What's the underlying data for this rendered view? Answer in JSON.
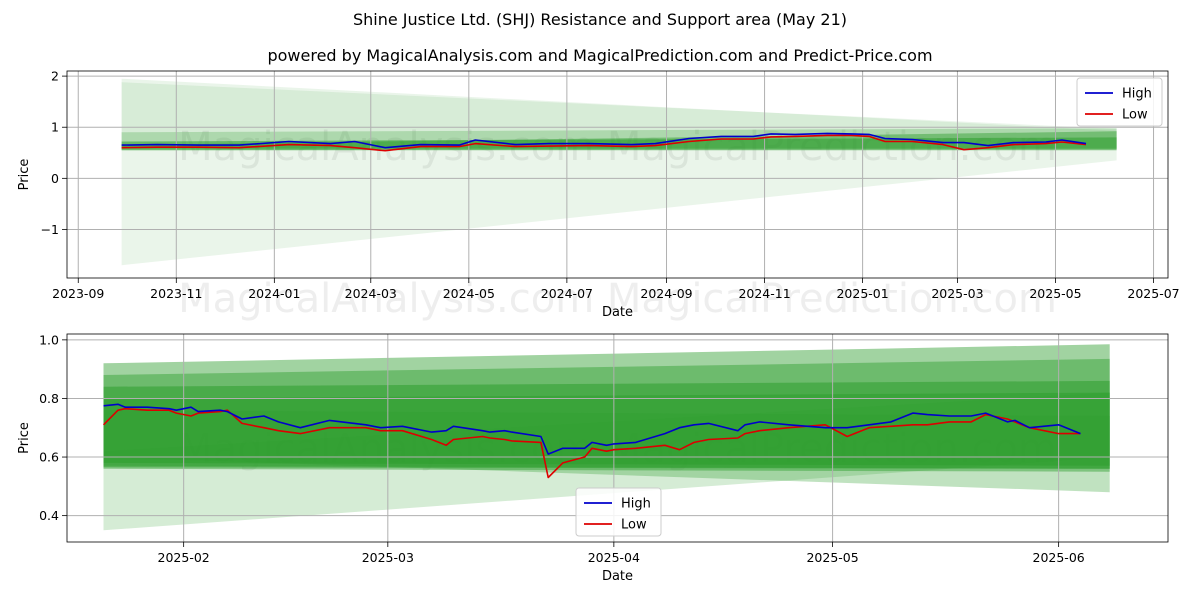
{
  "title": "Shine Justice Ltd. (SHJ) Resistance and Support area (May 21)",
  "subtitle": "powered by MagicalAnalysis.com and MagicalPrediction.com and Predict-Price.com",
  "watermark": "MagicalAnalysis.com     MagicalPrediction.com",
  "colors": {
    "high": "#0000cc",
    "low": "#dd0000",
    "band": "#2e9e2e"
  },
  "chart_data": [
    {
      "type": "line",
      "title": "",
      "xlabel": "Date",
      "ylabel": "Price",
      "x_tick_labels": [
        "2023-09",
        "2023-11",
        "2024-01",
        "2024-03",
        "2024-05",
        "2024-07",
        "2024-09",
        "2024-11",
        "2025-01",
        "2025-03",
        "2025-05",
        "2025-07"
      ],
      "y_tick_labels": [
        "−1",
        "0",
        "1",
        "2"
      ],
      "xlim": [
        "2023-08-25",
        "2025-07-10"
      ],
      "ylim": [
        -1.95,
        2.1
      ],
      "grid": true,
      "legend": "top-right",
      "x": [
        "2023-09-28",
        "2023-10-20",
        "2023-11-15",
        "2023-12-10",
        "2024-01-10",
        "2024-02-05",
        "2024-02-20",
        "2024-03-10",
        "2024-04-01",
        "2024-04-25",
        "2024-05-05",
        "2024-05-30",
        "2024-06-20",
        "2024-07-15",
        "2024-08-10",
        "2024-08-25",
        "2024-09-15",
        "2024-10-05",
        "2024-10-25",
        "2024-11-05",
        "2024-11-20",
        "2024-12-10",
        "2024-12-25",
        "2025-01-05",
        "2025-01-15",
        "2025-02-01",
        "2025-02-20",
        "2025-03-05",
        "2025-03-20",
        "2025-04-05",
        "2025-04-25",
        "2025-05-05",
        "2025-05-20"
      ],
      "series": [
        {
          "name": "High",
          "values": [
            0.65,
            0.66,
            0.65,
            0.65,
            0.72,
            0.68,
            0.72,
            0.6,
            0.66,
            0.65,
            0.75,
            0.66,
            0.68,
            0.68,
            0.66,
            0.68,
            0.78,
            0.82,
            0.82,
            0.87,
            0.86,
            0.88,
            0.87,
            0.86,
            0.78,
            0.76,
            0.7,
            0.7,
            0.64,
            0.7,
            0.71,
            0.75,
            0.68
          ]
        },
        {
          "name": "Low",
          "values": [
            0.6,
            0.61,
            0.61,
            0.6,
            0.66,
            0.64,
            0.6,
            0.54,
            0.62,
            0.62,
            0.68,
            0.62,
            0.63,
            0.64,
            0.62,
            0.64,
            0.72,
            0.77,
            0.77,
            0.81,
            0.82,
            0.84,
            0.84,
            0.82,
            0.72,
            0.72,
            0.66,
            0.56,
            0.6,
            0.66,
            0.68,
            0.71,
            0.66
          ]
        }
      ],
      "bands": [
        {
          "x": [
            "2023-09-28",
            "2025-06-08"
          ],
          "lower": [
            0.55,
            0.55
          ],
          "upper": [
            0.72,
            0.8
          ],
          "opacity": 0.55
        },
        {
          "x": [
            "2023-09-28",
            "2025-06-08"
          ],
          "lower": [
            0.58,
            0.58
          ],
          "upper": [
            0.65,
            0.92
          ],
          "opacity": 0.45
        },
        {
          "x": [
            "2023-09-28",
            "2025-06-08"
          ],
          "lower": [
            0.55,
            0.57
          ],
          "upper": [
            0.9,
            0.98
          ],
          "opacity": 0.25
        },
        {
          "x": [
            "2023-09-28",
            "2025-06-08"
          ],
          "lower": [
            -1.7,
            0.35
          ],
          "upper": [
            1.88,
            0.97
          ],
          "opacity": 0.1
        },
        {
          "x": [
            "2023-09-28",
            "2025-06-08"
          ],
          "lower": [
            0.6,
            0.6
          ],
          "upper": [
            1.95,
            0.93
          ],
          "opacity": 0.1
        }
      ]
    },
    {
      "type": "line",
      "title": "",
      "xlabel": "Date",
      "ylabel": "Price",
      "x_tick_labels": [
        "2025-02",
        "2025-03",
        "2025-04",
        "2025-05",
        "2025-06"
      ],
      "y_tick_labels": [
        "0.4",
        "0.6",
        "0.8",
        "1.0"
      ],
      "xlim": [
        "2025-01-16",
        "2025-06-16"
      ],
      "ylim": [
        0.31,
        1.02
      ],
      "grid": true,
      "legend": "bottom-center",
      "x": [
        "2025-01-21",
        "2025-01-23",
        "2025-01-24",
        "2025-01-27",
        "2025-01-30",
        "2025-01-31",
        "2025-02-02",
        "2025-02-03",
        "2025-02-06",
        "2025-02-07",
        "2025-02-09",
        "2025-02-12",
        "2025-02-14",
        "2025-02-17",
        "2025-02-21",
        "2025-02-26",
        "2025-02-28",
        "2025-03-03",
        "2025-03-07",
        "2025-03-09",
        "2025-03-10",
        "2025-03-14",
        "2025-03-15",
        "2025-03-17",
        "2025-03-18",
        "2025-03-22",
        "2025-03-23",
        "2025-03-25",
        "2025-03-28",
        "2025-03-29",
        "2025-03-31",
        "2025-04-01",
        "2025-04-04",
        "2025-04-08",
        "2025-04-10",
        "2025-04-12",
        "2025-04-14",
        "2025-04-18",
        "2025-04-19",
        "2025-04-21",
        "2025-04-25",
        "2025-04-30",
        "2025-05-03",
        "2025-05-06",
        "2025-05-09",
        "2025-05-12",
        "2025-05-14",
        "2025-05-17",
        "2025-05-20",
        "2025-05-22",
        "2025-05-25",
        "2025-05-26",
        "2025-05-28",
        "2025-06-01",
        "2025-06-04"
      ],
      "series": [
        {
          "name": "High",
          "values": [
            0.775,
            0.78,
            0.77,
            0.77,
            0.765,
            0.76,
            0.77,
            0.755,
            0.76,
            0.755,
            0.73,
            0.74,
            0.72,
            0.7,
            0.725,
            0.71,
            0.7,
            0.705,
            0.685,
            0.69,
            0.705,
            0.69,
            0.685,
            0.69,
            0.685,
            0.67,
            0.61,
            0.63,
            0.63,
            0.65,
            0.64,
            0.645,
            0.65,
            0.68,
            0.7,
            0.71,
            0.715,
            0.69,
            0.71,
            0.72,
            0.71,
            0.7,
            0.7,
            0.71,
            0.72,
            0.75,
            0.745,
            0.74,
            0.74,
            0.75,
            0.72,
            0.725,
            0.7,
            0.71,
            0.68
          ]
        },
        {
          "name": "Low",
          "values": [
            0.71,
            0.76,
            0.765,
            0.76,
            0.76,
            0.75,
            0.74,
            0.75,
            0.755,
            0.76,
            0.715,
            0.7,
            0.69,
            0.68,
            0.7,
            0.7,
            0.69,
            0.69,
            0.66,
            0.64,
            0.66,
            0.67,
            0.665,
            0.66,
            0.655,
            0.65,
            0.53,
            0.58,
            0.6,
            0.63,
            0.62,
            0.625,
            0.63,
            0.64,
            0.625,
            0.65,
            0.66,
            0.665,
            0.68,
            0.69,
            0.7,
            0.71,
            0.67,
            0.7,
            0.705,
            0.71,
            0.71,
            0.72,
            0.72,
            0.745,
            0.73,
            0.72,
            0.7,
            0.68,
            0.68
          ]
        }
      ],
      "bands": [
        {
          "x": [
            "2025-01-21",
            "2025-06-08"
          ],
          "lower": [
            0.56,
            0.55
          ],
          "upper": [
            0.92,
            0.985
          ],
          "opacity": 0.45
        },
        {
          "x": [
            "2025-01-21",
            "2025-06-08"
          ],
          "lower": [
            0.57,
            0.56
          ],
          "upper": [
            0.88,
            0.935
          ],
          "opacity": 0.45
        },
        {
          "x": [
            "2025-01-21",
            "2025-06-08"
          ],
          "lower": [
            0.58,
            0.57
          ],
          "upper": [
            0.84,
            0.86
          ],
          "opacity": 0.55
        },
        {
          "x": [
            "2025-01-21",
            "2025-06-08"
          ],
          "lower": [
            0.565,
            0.56
          ],
          "upper": [
            0.8,
            0.82
          ],
          "opacity": 0.55
        },
        {
          "x": [
            "2025-01-21",
            "2025-06-08"
          ],
          "lower": [
            0.6,
            0.48
          ],
          "upper": [
            0.76,
            0.74
          ],
          "opacity": 0.3
        },
        {
          "x": [
            "2025-01-21",
            "2025-06-08"
          ],
          "lower": [
            0.35,
            0.6
          ],
          "upper": [
            0.62,
            0.82
          ],
          "opacity": 0.2
        }
      ]
    }
  ]
}
